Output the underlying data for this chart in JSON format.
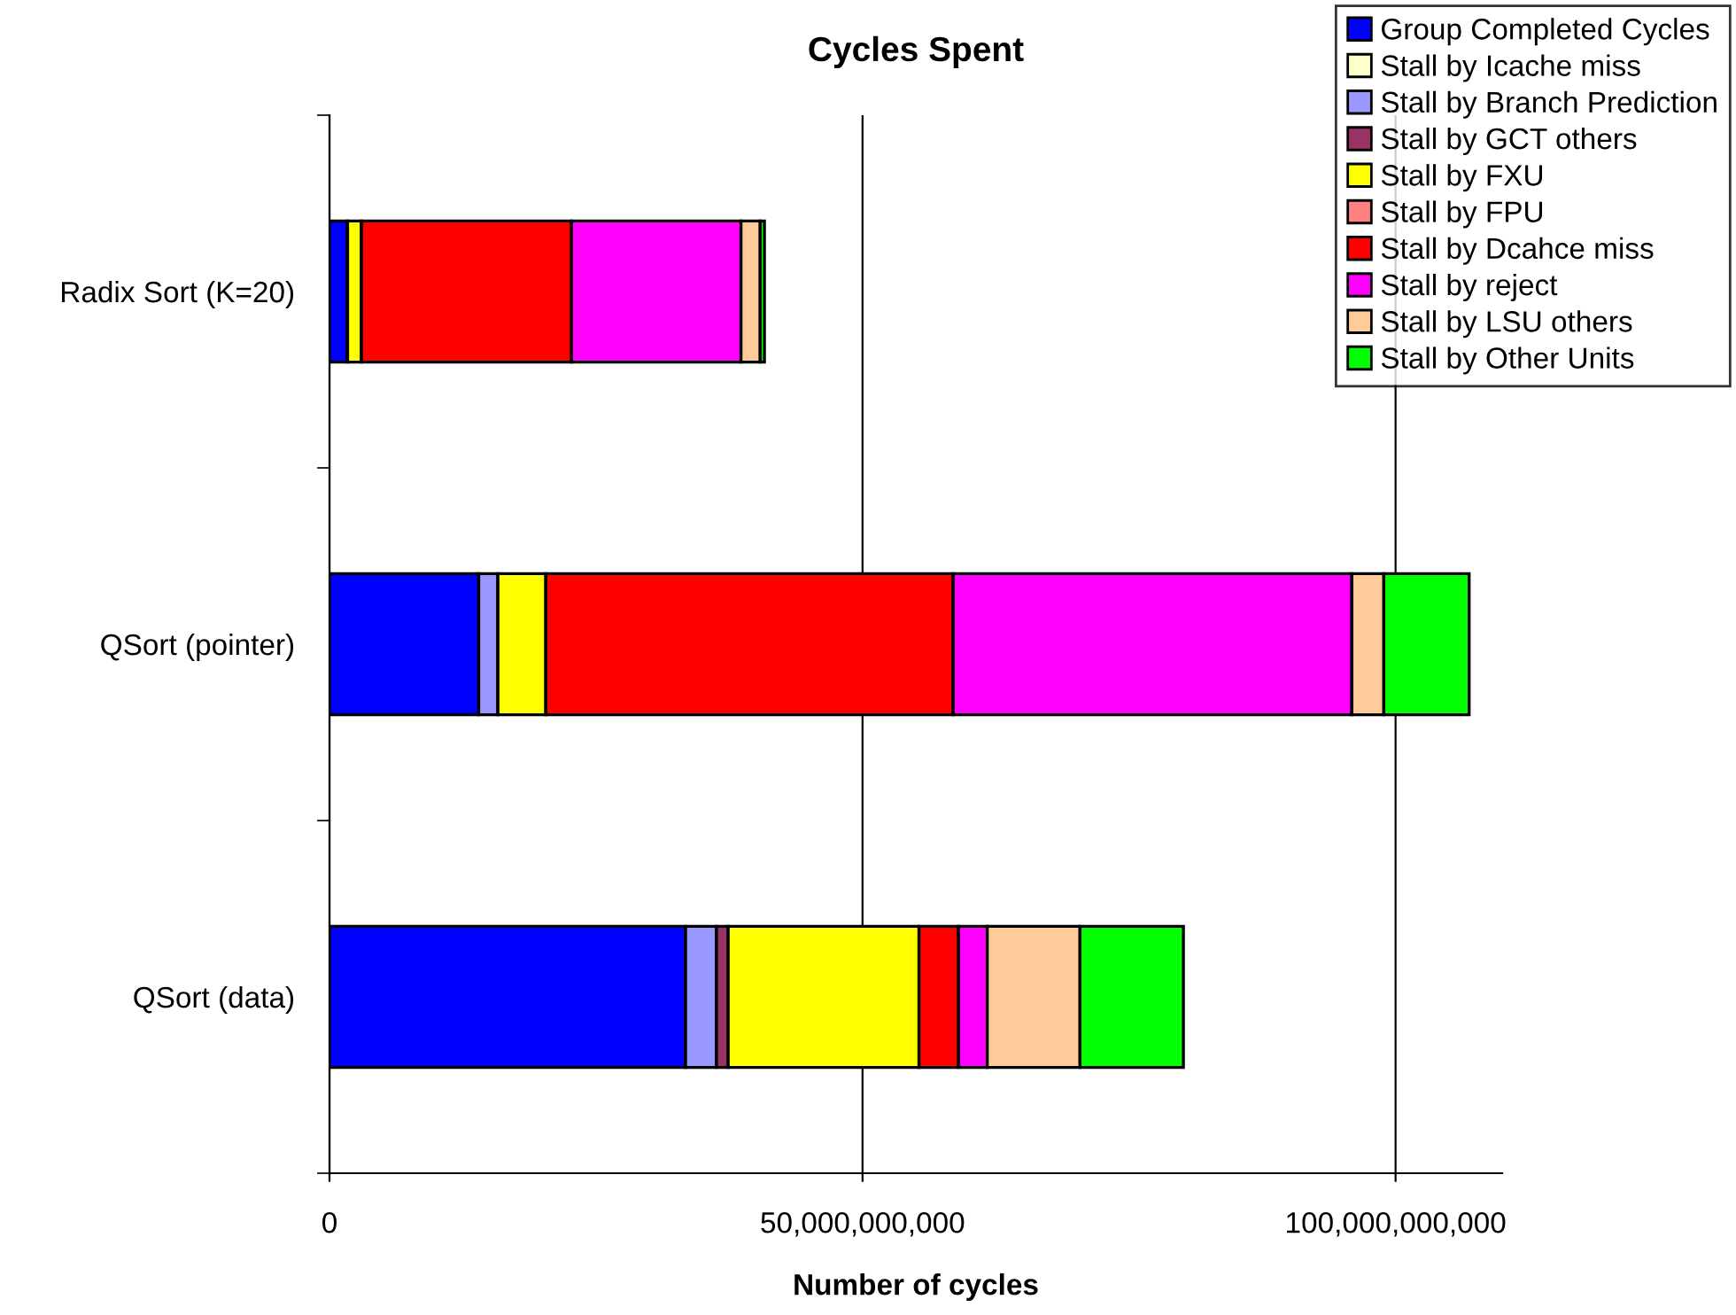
{
  "chart_data": {
    "type": "bar",
    "orientation": "horizontal",
    "stacked": true,
    "title": "Cycles Spent",
    "xlabel": "Number of cycles",
    "categories": [
      "Radix Sort (K=20)",
      "QSort (pointer)",
      "QSort (data)"
    ],
    "series": [
      {
        "name": "Group Completed Cycles",
        "color": "#0000ff",
        "values": [
          1700000000,
          14000000000,
          33400000000
        ]
      },
      {
        "name": "Stall by Icache miss",
        "color": "#ffffcc",
        "values": [
          null,
          0,
          null
        ]
      },
      {
        "name": "Stall by Branch Prediction",
        "color": "#9999ff",
        "values": [
          null,
          1800000000,
          2900000000
        ]
      },
      {
        "name": "Stall by GCT others",
        "color": "#993366",
        "values": [
          null,
          0,
          1100000000
        ]
      },
      {
        "name": "Stall by FXU",
        "color": "#ffff00",
        "values": [
          1300000000,
          4500000000,
          17900000000
        ]
      },
      {
        "name": "Stall by FPU",
        "color": "#ff8080",
        "values": [
          0,
          0,
          0
        ]
      },
      {
        "name": "Stall by Dcahce miss",
        "color": "#ff0000",
        "values": [
          19700000000,
          38200000000,
          3700000000
        ]
      },
      {
        "name": "Stall by reject",
        "color": "#ff00ff",
        "values": [
          15900000000,
          37400000000,
          2700000000
        ]
      },
      {
        "name": "Stall by LSU others",
        "color": "#ffcc99",
        "values": [
          1800000000,
          3000000000,
          8700000000
        ]
      },
      {
        "name": "Stall by Other Units",
        "color": "#00ff00",
        "values": [
          400000000,
          8000000000,
          9700000000
        ]
      }
    ],
    "xlim": [
      0,
      110000000000
    ],
    "xticks": [
      0,
      {
        "value": 50000000000,
        "label": "50,000,000,000"
      },
      {
        "value": 100000000000,
        "label": "100,000,000,000"
      }
    ],
    "grid": "x",
    "legend": "top right"
  }
}
